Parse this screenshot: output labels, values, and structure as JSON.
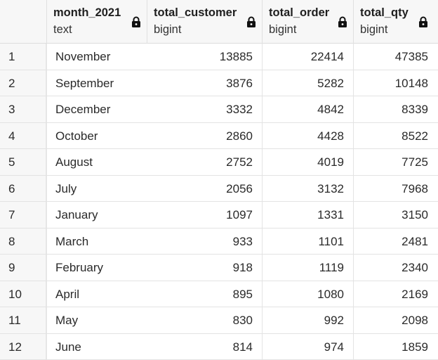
{
  "columns": [
    {
      "name": "month_2021",
      "type": "text"
    },
    {
      "name": "total_customer",
      "type": "bigint"
    },
    {
      "name": "total_order",
      "type": "bigint"
    },
    {
      "name": "total_qty",
      "type": "bigint"
    }
  ],
  "rows": [
    {
      "n": "1",
      "month": "November",
      "customer": "13885",
      "order": "22414",
      "qty": "47385"
    },
    {
      "n": "2",
      "month": "September",
      "customer": "3876",
      "order": "5282",
      "qty": "10148"
    },
    {
      "n": "3",
      "month": "December",
      "customer": "3332",
      "order": "4842",
      "qty": "8339"
    },
    {
      "n": "4",
      "month": "October",
      "customer": "2860",
      "order": "4428",
      "qty": "8522"
    },
    {
      "n": "5",
      "month": "August",
      "customer": "2752",
      "order": "4019",
      "qty": "7725"
    },
    {
      "n": "6",
      "month": "July",
      "customer": "2056",
      "order": "3132",
      "qty": "7968"
    },
    {
      "n": "7",
      "month": "January",
      "customer": "1097",
      "order": "1331",
      "qty": "3150"
    },
    {
      "n": "8",
      "month": "March",
      "customer": "933",
      "order": "1101",
      "qty": "2481"
    },
    {
      "n": "9",
      "month": "February",
      "customer": "918",
      "order": "1119",
      "qty": "2340"
    },
    {
      "n": "10",
      "month": "April",
      "customer": "895",
      "order": "1080",
      "qty": "2169"
    },
    {
      "n": "11",
      "month": "May",
      "customer": "830",
      "order": "992",
      "qty": "2098"
    },
    {
      "n": "12",
      "month": "June",
      "customer": "814",
      "order": "974",
      "qty": "1859"
    }
  ]
}
